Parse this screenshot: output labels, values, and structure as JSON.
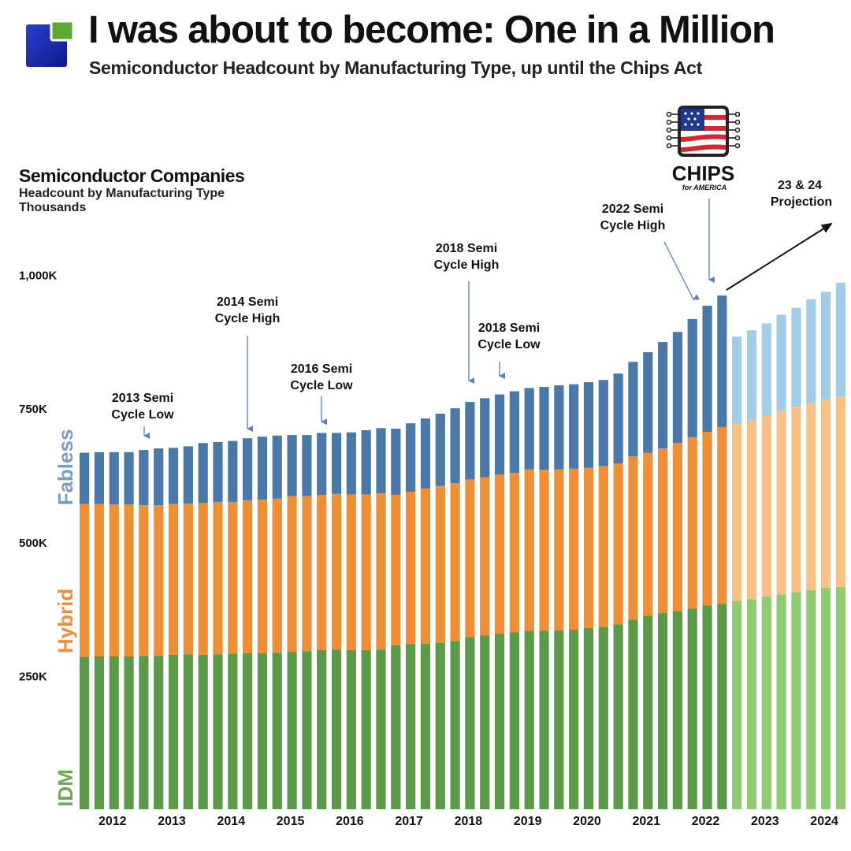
{
  "header": {
    "title": "I was about to become: One in a Million",
    "subtitle": "Semiconductor Headcount by Manufacturing Type, up until the Chips Act"
  },
  "chart_heading": {
    "title": "Semiconductor Companies",
    "line2": "Headcount by Manufacturing Type",
    "line3": "Thousands"
  },
  "chips_logo": {
    "word": "CHIPS",
    "tag": "for AMERICA"
  },
  "colors": {
    "idm": "#5a9a48",
    "hybrid": "#ee8e35",
    "fabless": "#4a78a8",
    "idm_proj": "#8ecb72",
    "hybrid_proj": "#f9c185",
    "fabless_proj": "#a2cbe6",
    "label_idm": "#6aab55",
    "label_hybrid": "#ee8e35",
    "label_fabless": "#7a9cc4"
  },
  "chart_data": {
    "type": "bar",
    "stacked": true,
    "title": "Semiconductor Companies",
    "ylabel": "Headcount by Manufacturing Type, Thousands",
    "ylim": [
      0,
      1000
    ],
    "yticks": [
      {
        "value": 250,
        "label": "250K"
      },
      {
        "value": 500,
        "label": "500K"
      },
      {
        "value": 750,
        "label": "750K"
      },
      {
        "value": 1000,
        "label": "1,000K"
      }
    ],
    "year_labels": [
      {
        "label": "2012",
        "index": 2
      },
      {
        "label": "2013",
        "index": 6
      },
      {
        "label": "2014",
        "index": 10
      },
      {
        "label": "2015",
        "index": 14
      },
      {
        "label": "2016",
        "index": 18
      },
      {
        "label": "2017",
        "index": 22
      },
      {
        "label": "2018",
        "index": 26
      },
      {
        "label": "2019",
        "index": 30
      },
      {
        "label": "2020",
        "index": 34
      },
      {
        "label": "2021",
        "index": 38
      },
      {
        "label": "2022",
        "index": 42
      },
      {
        "label": "2023",
        "index": 46
      },
      {
        "label": "2024",
        "index": 50
      }
    ],
    "projection_start_index": 44,
    "series": [
      {
        "name": "IDM",
        "color": "#5a9a48",
        "projection_color": "#8ecb72",
        "values": [
          285,
          286,
          286,
          286,
          287,
          287,
          289,
          290,
          289,
          290,
          291,
          292,
          292,
          293,
          294,
          296,
          298,
          299,
          298,
          298,
          299,
          307,
          309,
          310,
          311,
          314,
          322,
          325,
          328,
          331,
          334,
          334,
          335,
          336,
          339,
          341,
          346,
          355,
          362,
          367,
          371,
          375,
          381,
          384,
          390,
          393,
          398,
          402,
          406,
          410,
          414,
          416
        ]
      },
      {
        "name": "Hybrid",
        "color": "#ee8e35",
        "projection_color": "#f9c185",
        "values": [
          286,
          285,
          284,
          284,
          282,
          282,
          282,
          282,
          284,
          285,
          284,
          286,
          287,
          288,
          292,
          290,
          290,
          291,
          291,
          291,
          292,
          281,
          285,
          290,
          294,
          296,
          295,
          296,
          298,
          298,
          302,
          301,
          301,
          301,
          300,
          301,
          301,
          305,
          305,
          308,
          314,
          321,
          325,
          331,
          331,
          336,
          339,
          342,
          347,
          350,
          353,
          356
        ]
      },
      {
        "name": "Fabless",
        "color": "#4a78a8",
        "projection_color": "#a2cbe6",
        "values": [
          96,
          97,
          98,
          98,
          103,
          106,
          105,
          107,
          112,
          112,
          114,
          116,
          118,
          118,
          114,
          114,
          116,
          114,
          116,
          120,
          122,
          124,
          128,
          131,
          135,
          140,
          145,
          148,
          150,
          153,
          152,
          155,
          157,
          158,
          160,
          161,
          168,
          177,
          188,
          199,
          208,
          221,
          236,
          246,
          163,
          167,
          172,
          181,
          185,
          194,
          201,
          213
        ]
      }
    ],
    "series_labels": {
      "idm": "IDM",
      "hybrid": "Hybrid",
      "fabless": "Fabless"
    },
    "annotations": [
      {
        "lines": [
          "2013 Semi",
          "Cycle Low"
        ],
        "index": 9
      },
      {
        "lines": [
          "2014 Semi",
          "Cycle High"
        ],
        "index": 14
      },
      {
        "lines": [
          "2016 Semi",
          "Cycle Low"
        ],
        "index": 20
      },
      {
        "lines": [
          "2018 Semi",
          "Cycle High"
        ],
        "index": 31
      },
      {
        "lines": [
          "2018 Semi",
          "Cycle Low"
        ],
        "index": 34
      },
      {
        "lines": [
          "2022 Semi",
          "Cycle High"
        ],
        "index": 42
      },
      {
        "lines": [
          "23 & 24",
          "Projection"
        ]
      }
    ]
  }
}
